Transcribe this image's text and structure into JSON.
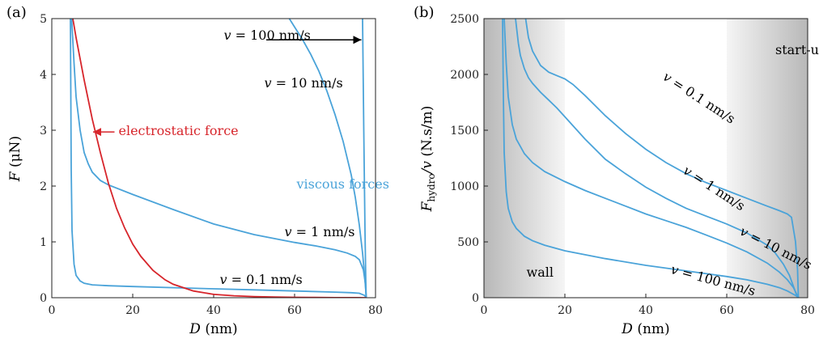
{
  "figure": {
    "panel_a_label": "(a)",
    "panel_b_label": "(b)"
  },
  "colors": {
    "viscous": "#4aa3d9",
    "electrostatic": "#d7252b",
    "arrow": "#000000",
    "shade_dark": "#bdbdbd",
    "shade_light": "#f4f4f4"
  },
  "chart_data": [
    {
      "type": "line",
      "panel": "(a)",
      "xlabel_var": "D",
      "xlabel_unit": "(nm)",
      "ylabel_var": "F",
      "ylabel_unit": "(μN)",
      "xlim": [
        0,
        80
      ],
      "ylim": [
        0,
        5
      ],
      "xticks": [
        0,
        20,
        40,
        60,
        80
      ],
      "yticks": [
        0,
        1,
        2,
        3,
        4,
        5
      ],
      "series": [
        {
          "name": "v = 0.1 nm/s",
          "color": "#4aa3d9",
          "x": [
            4.6,
            4.8,
            5.0,
            5.5,
            6,
            7,
            8,
            10,
            14,
            20,
            30,
            40,
            50,
            60,
            70,
            74,
            76,
            77.3,
            77.7
          ],
          "y": [
            5.0,
            2.3,
            1.2,
            0.6,
            0.4,
            0.3,
            0.26,
            0.23,
            0.215,
            0.2,
            0.18,
            0.16,
            0.14,
            0.12,
            0.1,
            0.09,
            0.08,
            0.04,
            0.0
          ]
        },
        {
          "name": "v = 1 nm/s",
          "color": "#4aa3d9",
          "x": [
            4.9,
            5.5,
            6,
            7,
            8,
            9,
            10,
            12,
            14,
            20,
            30,
            40,
            50,
            60,
            65,
            70,
            73,
            75,
            76,
            77,
            77.5,
            77.7
          ],
          "y": [
            5.0,
            4.2,
            3.6,
            3.0,
            2.6,
            2.4,
            2.25,
            2.1,
            2.02,
            1.85,
            1.58,
            1.32,
            1.13,
            0.99,
            0.93,
            0.86,
            0.8,
            0.74,
            0.68,
            0.5,
            0.25,
            0.0
          ]
        },
        {
          "name": "v = 10 nm/s",
          "color": "#4aa3d9",
          "x": [
            58.7,
            60,
            62,
            64,
            66,
            68,
            70,
            72,
            74,
            75,
            76,
            76.8,
            77.3,
            77.6,
            77.7
          ],
          "y": [
            5.0,
            4.85,
            4.62,
            4.36,
            4.06,
            3.7,
            3.28,
            2.8,
            2.2,
            1.8,
            1.3,
            0.8,
            0.4,
            0.12,
            0.0
          ]
        },
        {
          "name": "v = 100 nm/s",
          "color": "#4aa3d9",
          "x": [
            76.8,
            77.1,
            77.4,
            77.6,
            77.7
          ],
          "y": [
            5.0,
            3.0,
            1.2,
            0.3,
            0.0
          ]
        },
        {
          "name": "electrostatic force",
          "color": "#d7252b",
          "x": [
            5.2,
            6,
            8,
            10,
            12,
            14,
            16,
            18,
            20,
            22,
            25,
            28,
            30,
            35,
            40,
            45,
            50,
            55,
            60,
            65,
            70,
            75,
            77.7
          ],
          "y": [
            5.0,
            4.66,
            3.9,
            3.2,
            2.6,
            2.05,
            1.6,
            1.25,
            0.96,
            0.74,
            0.49,
            0.32,
            0.24,
            0.12,
            0.06,
            0.035,
            0.02,
            0.012,
            0.007,
            0.004,
            0.002,
            0.001,
            0.0
          ]
        }
      ],
      "annotations": [
        {
          "text_var": "v",
          "text_rest": " = 100 nm/s",
          "color": "#000000",
          "at": [
            42.5,
            4.62
          ]
        },
        {
          "text_var": "v",
          "text_rest": " = 10 nm/s",
          "color": "#000000",
          "at": [
            52.5,
            3.77
          ]
        },
        {
          "text_var": "v",
          "text_rest": " = 1 nm/s",
          "color": "#000000",
          "at": [
            57.5,
            1.1
          ]
        },
        {
          "text_var": "v",
          "text_rest": " = 0.1 nm/s",
          "color": "#000000",
          "at": [
            41.5,
            0.25
          ]
        },
        {
          "text": "electrostatic force",
          "color": "#d7252b",
          "at": [
            16.5,
            2.91
          ]
        },
        {
          "text": "viscous forces",
          "color": "#4aa3d9",
          "at": [
            60.5,
            1.96
          ]
        }
      ],
      "arrows": [
        {
          "from": [
            53,
            4.62
          ],
          "to": [
            76.5,
            4.62
          ],
          "color": "#000000"
        },
        {
          "from": [
            15.5,
            2.97
          ],
          "to": [
            10.2,
            2.97
          ],
          "color": "#d7252b"
        }
      ]
    },
    {
      "type": "line",
      "panel": "(b)",
      "xlabel_var": "D",
      "xlabel_unit": "(nm)",
      "ylabel_var": "F_hydro/v",
      "ylabel_unit": "(N.s/m)",
      "xlim": [
        0,
        80
      ],
      "ylim": [
        0,
        2500
      ],
      "xticks": [
        0,
        20,
        40,
        60,
        80
      ],
      "yticks": [
        0,
        500,
        1000,
        1500,
        2000,
        2500
      ],
      "shaded_regions": [
        {
          "label": "wall",
          "x": [
            0,
            20
          ],
          "dark_side": "left"
        },
        {
          "label": "start-up",
          "x": [
            60,
            80
          ],
          "dark_side": "right"
        }
      ],
      "series": [
        {
          "name": "v = 0.1 nm/s",
          "color": "#4aa3d9",
          "x": [
            10.3,
            11,
            12,
            14,
            16,
            18,
            20,
            22,
            25,
            30,
            35,
            40,
            45,
            50,
            55,
            60,
            65,
            70,
            73,
            75,
            76,
            77,
            77.5,
            77.7
          ],
          "y": [
            2500,
            2330,
            2210,
            2080,
            2020,
            1990,
            1960,
            1910,
            1810,
            1630,
            1470,
            1330,
            1210,
            1110,
            1030,
            960,
            890,
            820,
            780,
            750,
            720,
            500,
            250,
            0
          ]
        },
        {
          "name": "v = 1 nm/s",
          "color": "#4aa3d9",
          "x": [
            7.8,
            8.5,
            9,
            10,
            11,
            12,
            14,
            16,
            18,
            20,
            25,
            30,
            35,
            40,
            45,
            50,
            55,
            60,
            65,
            70,
            72,
            74,
            75.5,
            76.5,
            77.2,
            77.7
          ],
          "y": [
            2500,
            2280,
            2170,
            2050,
            1970,
            1920,
            1840,
            1770,
            1700,
            1620,
            1420,
            1240,
            1110,
            990,
            890,
            800,
            730,
            660,
            580,
            470,
            400,
            300,
            200,
            100,
            30,
            0
          ]
        },
        {
          "name": "v = 10 nm/s",
          "color": "#4aa3d9",
          "x": [
            5.0,
            5.5,
            6,
            7,
            8,
            10,
            12,
            15,
            20,
            25,
            30,
            35,
            40,
            45,
            50,
            55,
            60,
            65,
            70,
            73,
            75,
            76.5,
            77.3,
            77.7
          ],
          "y": [
            2500,
            2100,
            1800,
            1550,
            1420,
            1290,
            1210,
            1130,
            1040,
            960,
            890,
            820,
            750,
            690,
            630,
            560,
            490,
            410,
            310,
            230,
            160,
            90,
            30,
            0
          ]
        },
        {
          "name": "v = 100 nm/s",
          "color": "#4aa3d9",
          "x": [
            4.6,
            4.8,
            5.0,
            5.5,
            6,
            7,
            8,
            10,
            12,
            15,
            20,
            30,
            40,
            50,
            60,
            65,
            70,
            73,
            75,
            76,
            77,
            77.4,
            77.7
          ],
          "y": [
            2500,
            1800,
            1300,
            950,
            800,
            680,
            620,
            550,
            510,
            470,
            420,
            350,
            290,
            240,
            190,
            160,
            120,
            90,
            60,
            40,
            20,
            10,
            0
          ]
        }
      ],
      "annotations": [
        {
          "text_var": "v",
          "text_rest": " = 0.1 nm/s",
          "rotation": 33,
          "at": [
            44,
            1960
          ]
        },
        {
          "text_var": "v",
          "text_rest": " = 1 nm/s",
          "rotation": 33,
          "at": [
            49,
            1120
          ]
        },
        {
          "text_var": "v",
          "text_rest": " = 10 nm/s",
          "rotation": 27,
          "at": [
            63,
            570
          ]
        },
        {
          "text_var": "v",
          "text_rest": " = 100 nm/s",
          "rotation": 15,
          "at": [
            46,
            220
          ]
        },
        {
          "text": "wall",
          "at": [
            10.5,
            190
          ]
        },
        {
          "text": "start-up",
          "at": [
            72,
            2180
          ]
        }
      ]
    }
  ]
}
